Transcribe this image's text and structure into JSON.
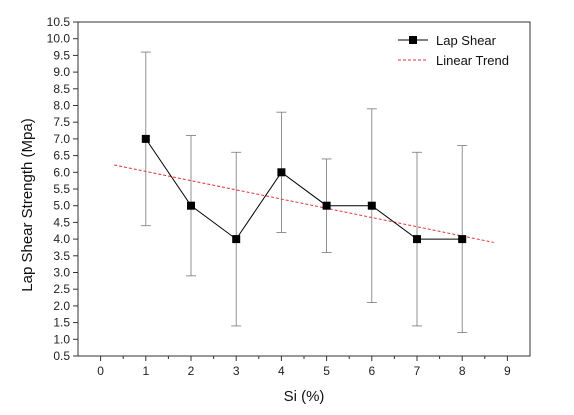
{
  "chart_data": {
    "type": "line",
    "xlabel": "Si (%)",
    "ylabel": "Lap Shear Strength (Mpa)",
    "xlim": [
      -0.5,
      9.5
    ],
    "ylim": [
      0.5,
      10.5
    ],
    "x_ticks": [
      0,
      1,
      2,
      3,
      4,
      5,
      6,
      7,
      8,
      9
    ],
    "y_ticks": [
      0.5,
      1.0,
      1.5,
      2.0,
      2.5,
      3.0,
      3.5,
      4.0,
      4.5,
      5.0,
      5.5,
      6.0,
      6.5,
      7.0,
      7.5,
      8.0,
      8.5,
      9.0,
      9.5,
      10.0,
      10.5
    ],
    "grid": false,
    "legend_position": "top-right",
    "series": [
      {
        "name": "Lap Shear",
        "color": "#000000",
        "marker": "square",
        "x": [
          1,
          2,
          3,
          4,
          5,
          6,
          7,
          8
        ],
        "y": [
          7.0,
          5.0,
          4.0,
          6.0,
          5.0,
          5.0,
          4.0,
          4.0
        ],
        "err_low": [
          4.4,
          2.9,
          1.4,
          4.2,
          3.6,
          2.1,
          1.4,
          1.2
        ],
        "err_high": [
          9.6,
          7.1,
          6.6,
          7.8,
          6.4,
          7.9,
          6.6,
          6.8
        ]
      },
      {
        "name": "Linear Trend",
        "color": "#e03030",
        "style": "dashed",
        "x": [
          0.3,
          8.7
        ],
        "y": [
          6.22,
          3.9
        ]
      }
    ]
  }
}
